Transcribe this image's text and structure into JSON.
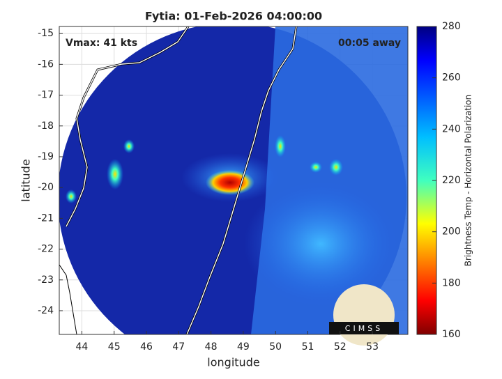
{
  "title": "Fytia: 01-Feb-2026 04:00:00",
  "vmax_label": "Vmax: 41 kts",
  "time_label": "00:05 away",
  "x_label": "longitude",
  "y_label": "latitude",
  "xlim": [
    43.3,
    54.1
  ],
  "ylim": [
    -24.77,
    -14.77
  ],
  "xticks": [
    44,
    45,
    46,
    47,
    48,
    49,
    50,
    51,
    52,
    53
  ],
  "yticks": [
    -15,
    -16,
    -17,
    -18,
    -19,
    -20,
    -21,
    -22,
    -23,
    -24
  ],
  "grid": true,
  "colorbar": {
    "label": "Brightness Temp - Horizontal Polarization",
    "lim": [
      160,
      280
    ],
    "ticks": [
      160,
      180,
      200,
      220,
      240,
      260,
      280
    ]
  },
  "logo_text": "CIMSS"
}
